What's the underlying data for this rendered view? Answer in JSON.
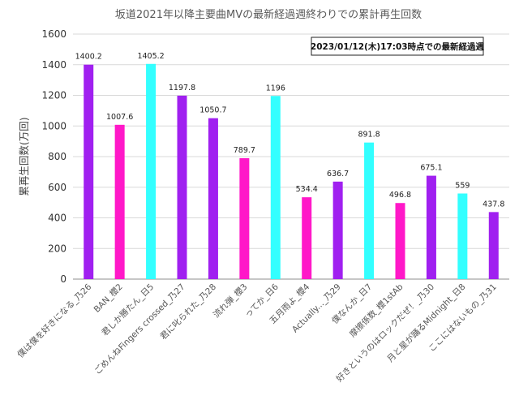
{
  "chart_data": {
    "type": "bar",
    "title": "坂道2021年以降主要曲MVの最新経過週終わりでの累計再生回数",
    "ylabel": "累再生回数(万回)",
    "xlabel": "",
    "ylim": [
      0,
      1600
    ],
    "yticks": [
      0,
      200,
      400,
      600,
      800,
      1000,
      1200,
      1400,
      1600
    ],
    "grid": true,
    "annotation": "2023/01/12(木)17:03時点での最新経過週",
    "categories": [
      "僕は僕を好きになる_乃26",
      "BAN_櫻2",
      "君しか勝たん_日5",
      "ごめんねFingers crossed_乃27",
      "君に叱られた_乃28",
      "流れ弾_櫻3",
      "ってか_日6",
      "五月雨よ_櫻4",
      "Actually..._乃29",
      "僕なんか_日7",
      "摩擦係数_櫻1stAb",
      "好きというのはロックだぜ！_乃30",
      "月と星が踊るMidnight_日8",
      "ここにはないもの_乃31"
    ],
    "values": [
      1400.2,
      1007.6,
      1405.2,
      1197.8,
      1050.7,
      789.7,
      1196,
      534.4,
      636.7,
      891.8,
      496.8,
      675.1,
      559,
      437.8
    ],
    "value_labels": [
      "1400.2",
      "1007.6",
      "1405.2",
      "1197.8",
      "1050.7",
      "789.7",
      "1196",
      "534.4",
      "636.7",
      "891.8",
      "496.8",
      "675.1",
      "559",
      "437.8"
    ],
    "colors": [
      "#a020f0",
      "#ff18c8",
      "#33ffff",
      "#a020f0",
      "#a020f0",
      "#ff18c8",
      "#33ffff",
      "#ff18c8",
      "#a020f0",
      "#33ffff",
      "#ff18c8",
      "#a020f0",
      "#33ffff",
      "#a020f0"
    ]
  }
}
